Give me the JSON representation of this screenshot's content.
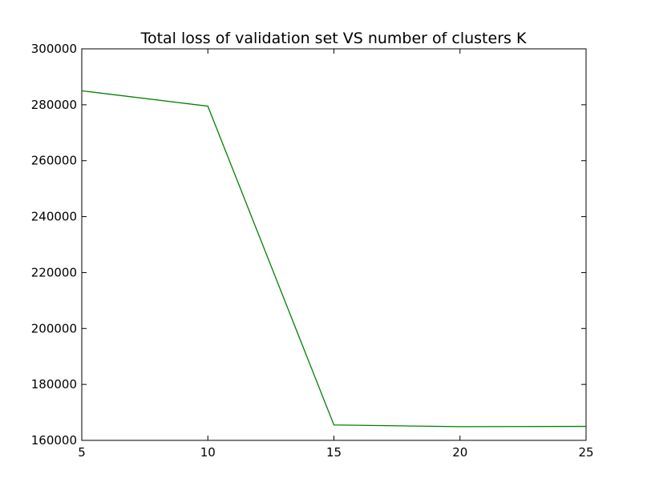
{
  "chart_data": {
    "type": "line",
    "title": "Total loss of validation set VS number of clusters K",
    "xlabel": "",
    "ylabel": "",
    "xlim": [
      5,
      25
    ],
    "ylim": [
      160000,
      300000
    ],
    "xticks": [
      5,
      10,
      15,
      20,
      25
    ],
    "xtick_labels": [
      "5",
      "10",
      "15",
      "20",
      "25"
    ],
    "yticks": [
      160000,
      180000,
      200000,
      220000,
      240000,
      260000,
      280000,
      300000
    ],
    "ytick_labels": [
      "160000",
      "180000",
      "200000",
      "220000",
      "240000",
      "260000",
      "280000",
      "300000"
    ],
    "grid": false,
    "legend": "none",
    "series": [
      {
        "color": "#008000",
        "x": [
          5,
          10,
          15,
          20,
          25
        ],
        "y": [
          285000,
          279500,
          165500,
          164900,
          165000
        ]
      }
    ]
  }
}
